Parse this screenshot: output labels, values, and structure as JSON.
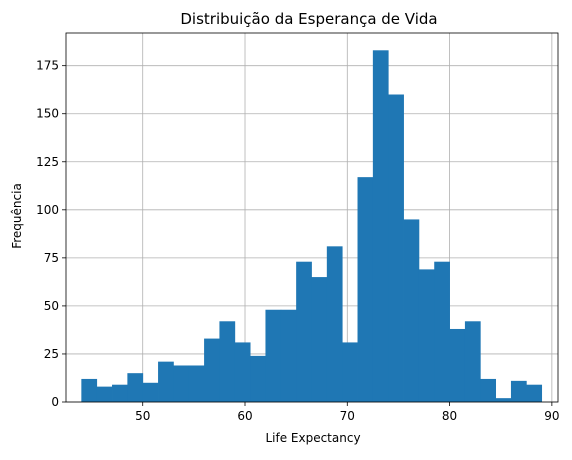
{
  "chart_data": {
    "type": "bar",
    "subtype": "histogram",
    "title": "Distribuição da Esperança de Vida",
    "xlabel": "Life Expectancy",
    "ylabel": "Frequência",
    "xlim": [
      42.5,
      90.6
    ],
    "ylim": [
      0,
      192
    ],
    "xticks": [
      50,
      60,
      70,
      80,
      90
    ],
    "yticks": [
      0,
      25,
      50,
      75,
      100,
      125,
      150,
      175
    ],
    "grid": true,
    "bar_color": "#1f77b4",
    "bin_start": 44.0,
    "bin_width": 1.5,
    "values": [
      12,
      8,
      9,
      15,
      10,
      21,
      19,
      19,
      33,
      42,
      31,
      24,
      48,
      48,
      73,
      65,
      81,
      31,
      117,
      183,
      160,
      95,
      69,
      73,
      38,
      42,
      12,
      2,
      11,
      9
    ]
  }
}
